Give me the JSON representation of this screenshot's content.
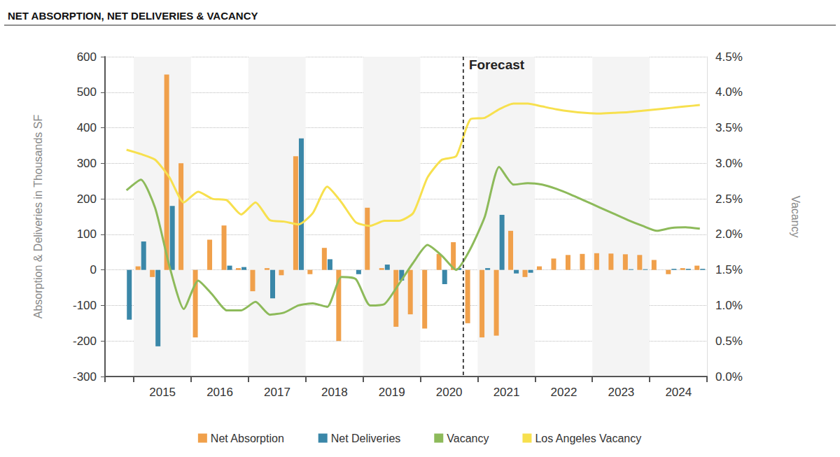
{
  "chart_data": {
    "type": "bar",
    "title": "NET ABSORPTION, NET DELIVERIES & VACANCY",
    "y_label": "Absorption & Deliveries in Thousands SF",
    "y2_label": "Vacancy",
    "categories": [
      null,
      null,
      null,
      null,
      "2015",
      null,
      null,
      null,
      "2016",
      null,
      null,
      null,
      "2017",
      null,
      null,
      null,
      "2018",
      null,
      null,
      null,
      "2019",
      null,
      null,
      null,
      "2020",
      null,
      null,
      null,
      "2021",
      null,
      null,
      null,
      "2022",
      null,
      null,
      null,
      "2023",
      null,
      null,
      null,
      "2024",
      null
    ],
    "series": [
      {
        "name": "Net Absorption",
        "type": "bar",
        "color": "#f0a04b",
        "values": [
          null,
          0,
          10,
          -20,
          550,
          300,
          -190,
          85,
          125,
          5,
          -60,
          5,
          -15,
          320,
          -12,
          62,
          -200,
          0,
          175,
          5,
          -160,
          -125,
          -165,
          45,
          78,
          -150,
          -190,
          -185,
          110,
          -20,
          10,
          32,
          42,
          45,
          47,
          46,
          44,
          42,
          28,
          -12,
          5,
          12
        ]
      },
      {
        "name": "Net Deliveries",
        "type": "bar",
        "color": "#3a87a8",
        "values": [
          null,
          -140,
          80,
          -215,
          180,
          0,
          0,
          0,
          12,
          8,
          0,
          -80,
          0,
          370,
          0,
          30,
          0,
          -12,
          0,
          15,
          -30,
          0,
          0,
          -40,
          5,
          0,
          5,
          155,
          -10,
          -8,
          0,
          0,
          0,
          0,
          0,
          0,
          2,
          2,
          0,
          3,
          3,
          3
        ]
      },
      {
        "name": "Vacancy",
        "type": "line",
        "axis": "y2",
        "color": "#8dba5a",
        "values": [
          null,
          2.62,
          2.77,
          2.37,
          1.55,
          0.95,
          1.35,
          1.15,
          0.93,
          0.93,
          1.05,
          0.87,
          0.9,
          1.0,
          1.03,
          0.98,
          1.4,
          1.37,
          1.0,
          1.02,
          1.3,
          1.6,
          1.85,
          1.7,
          1.5,
          1.8,
          2.25,
          2.95,
          2.7,
          2.72,
          2.7,
          2.64,
          2.56,
          2.47,
          2.38,
          2.29,
          2.2,
          2.12,
          2.05,
          2.09,
          2.1,
          2.08
        ]
      },
      {
        "name": "Los Angeles Vacancy",
        "type": "line",
        "axis": "y2",
        "color": "#f7e04e",
        "values": [
          null,
          3.19,
          3.13,
          3.05,
          2.8,
          2.45,
          2.6,
          2.5,
          2.48,
          2.28,
          2.45,
          2.2,
          2.18,
          2.14,
          2.3,
          2.67,
          2.45,
          2.17,
          2.12,
          2.19,
          2.19,
          2.3,
          2.8,
          3.05,
          3.1,
          3.62,
          3.64,
          3.76,
          3.84,
          3.84,
          3.8,
          3.76,
          3.73,
          3.71,
          3.7,
          3.71,
          3.72,
          3.74,
          3.76,
          3.78,
          3.8,
          3.82
        ]
      }
    ],
    "ylim": [
      -300,
      600
    ],
    "yticks": [
      -300,
      -200,
      -100,
      0,
      100,
      200,
      300,
      400,
      500,
      600
    ],
    "y2lim": [
      0,
      4.5
    ],
    "y2ticks": [
      {
        "value": 0,
        "label": "0.0%"
      },
      {
        "value": 0.5,
        "label": "0.5%"
      },
      {
        "value": 1,
        "label": "1.0%"
      },
      {
        "value": 1.5,
        "label": "1.5%"
      },
      {
        "value": 2,
        "label": "2.0%"
      },
      {
        "value": 2.5,
        "label": "2.5%"
      },
      {
        "value": 3,
        "label": "3.0%"
      },
      {
        "value": 3.5,
        "label": "3.5%"
      },
      {
        "value": 4,
        "label": "4.0%"
      },
      {
        "value": 4.5,
        "label": "4.5%"
      }
    ],
    "grid": true,
    "legend": "bottom",
    "annotations": [
      {
        "text": "Forecast",
        "x_index": 25
      }
    ]
  }
}
